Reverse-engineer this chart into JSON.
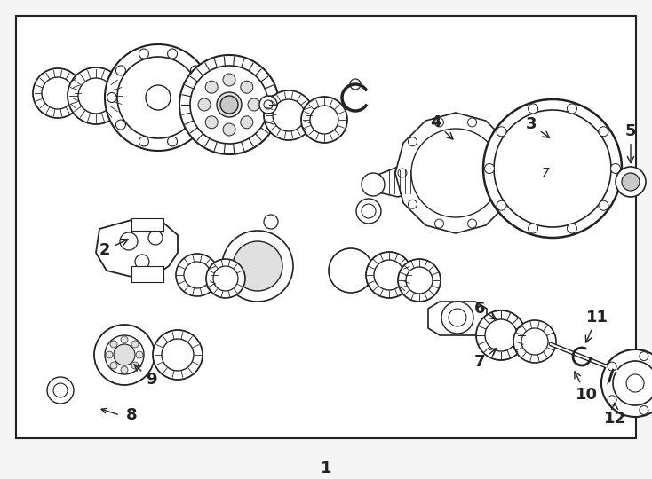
{
  "bg_color": "#f5f5f5",
  "border_color": "#222222",
  "line_color": "#222222",
  "fill_color": "#ffffff",
  "gray_fill": "#c8c8c8",
  "light_gray": "#e0e0e0",
  "fig_w": 7.34,
  "fig_h": 5.4,
  "dpi": 100
}
